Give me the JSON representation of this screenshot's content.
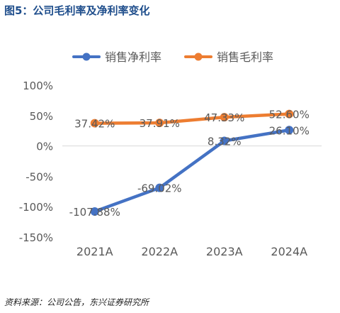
{
  "figure_title": "图5：公司毛利率及净利率变化",
  "source": "资料来源：公司公告，东兴证券研究所",
  "colors": {
    "net_margin": "#4472c4",
    "gross_margin": "#ed7d31",
    "axis_text": "#595959",
    "grid_zero": "#d9d9d9",
    "title": "#1f4e8c"
  },
  "chart_data": {
    "type": "line",
    "title": "",
    "xlabel": "",
    "ylabel": "",
    "categories": [
      "2021A",
      "2022A",
      "2023A",
      "2024A"
    ],
    "ylim": [
      -150,
      100
    ],
    "yticks": [
      "100%",
      "50%",
      "0%",
      "-50%",
      "-100%",
      "-150%"
    ],
    "grid": false,
    "legend": "top",
    "series": [
      {
        "name": "销售净利率",
        "values": [
          -107.88,
          -69.02,
          8.32,
          26.1
        ],
        "labels": [
          "-107.88%",
          "-69.02%",
          "8.32%",
          "26.10%"
        ]
      },
      {
        "name": "销售毛利率",
        "values": [
          37.42,
          37.91,
          47.33,
          52.6
        ],
        "labels": [
          "37.42%",
          "37.91%",
          "47.33%",
          "52.60%"
        ]
      }
    ]
  }
}
